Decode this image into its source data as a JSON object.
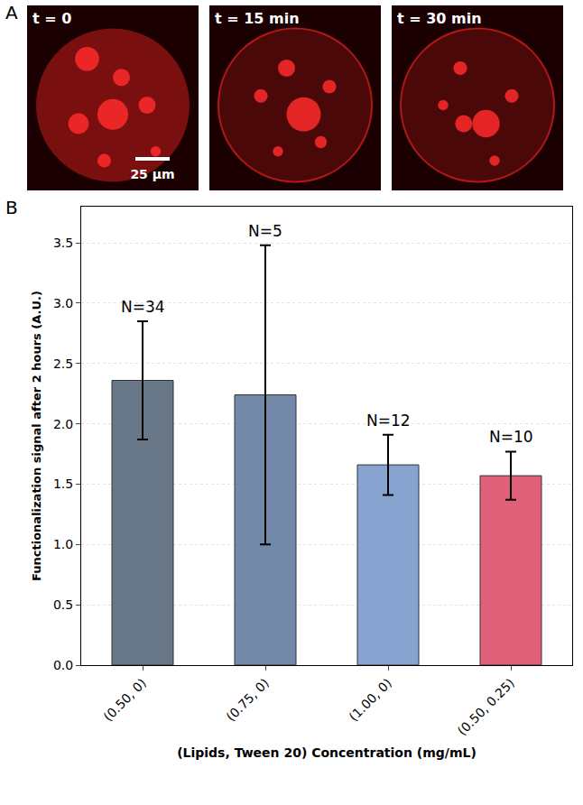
{
  "panels": {
    "A": {
      "label": "A",
      "frames": [
        "t = 0",
        "t = 15 min",
        "t = 30 min"
      ],
      "scale_bar": "25 µm"
    },
    "B": {
      "label": "B"
    }
  },
  "chart_data": {
    "type": "bar",
    "categories": [
      "(0.50, 0)",
      "(0.75, 0)",
      "(1.00, 0)",
      "(0.50, 0.25)"
    ],
    "values": [
      2.36,
      2.24,
      1.66,
      1.57
    ],
    "errors": [
      0.49,
      1.24,
      0.25,
      0.2
    ],
    "annotations": [
      "N=34",
      "N=5",
      "N=12",
      "N=10"
    ],
    "colors": [
      "#677787",
      "#7389a9",
      "#86a4cf",
      "#e0607a"
    ],
    "xlabel": "(Lipids, Tween 20) Concentration (mg/mL)",
    "ylabel": "Functionalization signal after 2 hours (A.U.)",
    "ylim": [
      0,
      3.8
    ],
    "yticks": [
      {
        "value": 0,
        "label": "0.0"
      },
      0.5,
      {
        "value": 1,
        "label": "1.0"
      },
      1.5,
      {
        "value": 2,
        "label": "2.0"
      },
      2.5,
      {
        "value": 3,
        "label": "3.0"
      },
      3.5
    ],
    "grid": true
  }
}
